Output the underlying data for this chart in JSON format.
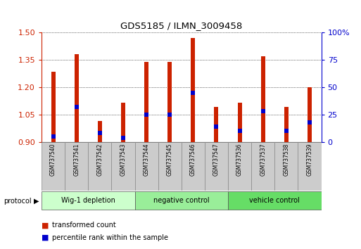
{
  "title": "GDS5185 / ILMN_3009458",
  "samples": [
    "GSM737540",
    "GSM737541",
    "GSM737542",
    "GSM737543",
    "GSM737544",
    "GSM737545",
    "GSM737546",
    "GSM737547",
    "GSM737536",
    "GSM737537",
    "GSM737538",
    "GSM737539"
  ],
  "transformed_counts": [
    1.285,
    1.38,
    1.015,
    1.115,
    1.34,
    1.34,
    1.47,
    1.09,
    1.115,
    1.37,
    1.09,
    1.2
  ],
  "percentile_ranks": [
    5,
    32,
    8,
    4,
    25,
    25,
    45,
    14,
    10,
    28,
    10,
    18
  ],
  "groups": [
    {
      "label": "Wig-1 depletion",
      "indices": [
        0,
        1,
        2,
        3
      ],
      "color": "#ccffcc"
    },
    {
      "label": "negative control",
      "indices": [
        4,
        5,
        6,
        7
      ],
      "color": "#99ee99"
    },
    {
      "label": "vehicle control",
      "indices": [
        8,
        9,
        10,
        11
      ],
      "color": "#66dd66"
    }
  ],
  "ylim_left": [
    0.9,
    1.5
  ],
  "ylim_right": [
    0,
    100
  ],
  "yticks_left": [
    0.9,
    1.05,
    1.2,
    1.35,
    1.5
  ],
  "yticks_right": [
    0,
    25,
    50,
    75,
    100
  ],
  "bar_color": "#cc2200",
  "percentile_color": "#0000cc",
  "bar_bottom": 0.9,
  "legend_items": [
    {
      "label": "transformed count",
      "color": "#cc2200"
    },
    {
      "label": "percentile rank within the sample",
      "color": "#0000cc"
    }
  ]
}
